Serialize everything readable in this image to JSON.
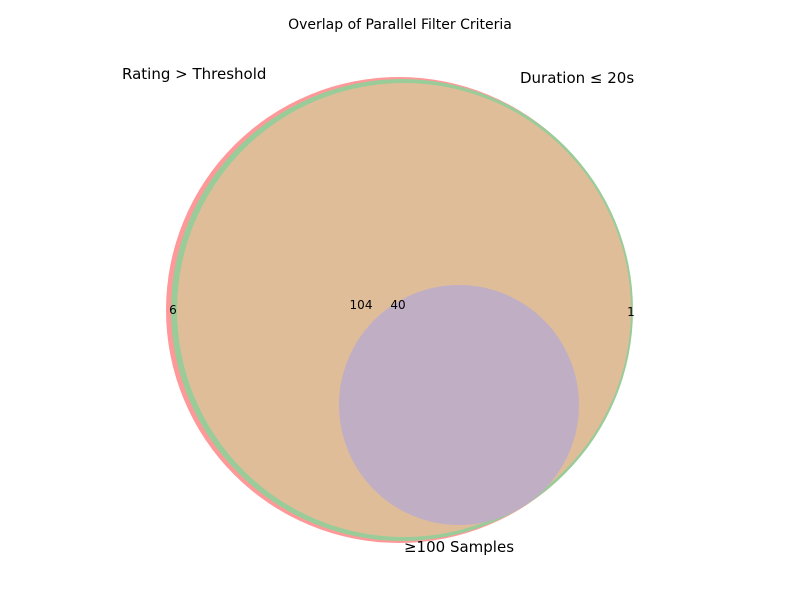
{
  "chart_data": {
    "type": "venn",
    "title": "Overlap of Parallel Filter Criteria",
    "sets": [
      {
        "name": "Rating > Threshold",
        "color": "#ff9999"
      },
      {
        "name": "Duration ≤ 20s",
        "color": "#99cc99"
      },
      {
        "name": "≥100 Samples",
        "color": "#c0aec5"
      }
    ],
    "overlap_color": "#e0bd99",
    "regions": [
      {
        "sets": [
          "Rating > Threshold"
        ],
        "value": "6"
      },
      {
        "sets": [
          "Rating > Threshold",
          "Duration ≤ 20s"
        ],
        "value": "104"
      },
      {
        "sets": [
          "Rating > Threshold",
          "Duration ≤ 20s",
          "≥100 Samples"
        ],
        "value": "40"
      },
      {
        "sets": [
          "Duration ≤ 20s"
        ],
        "value": "1"
      }
    ]
  }
}
